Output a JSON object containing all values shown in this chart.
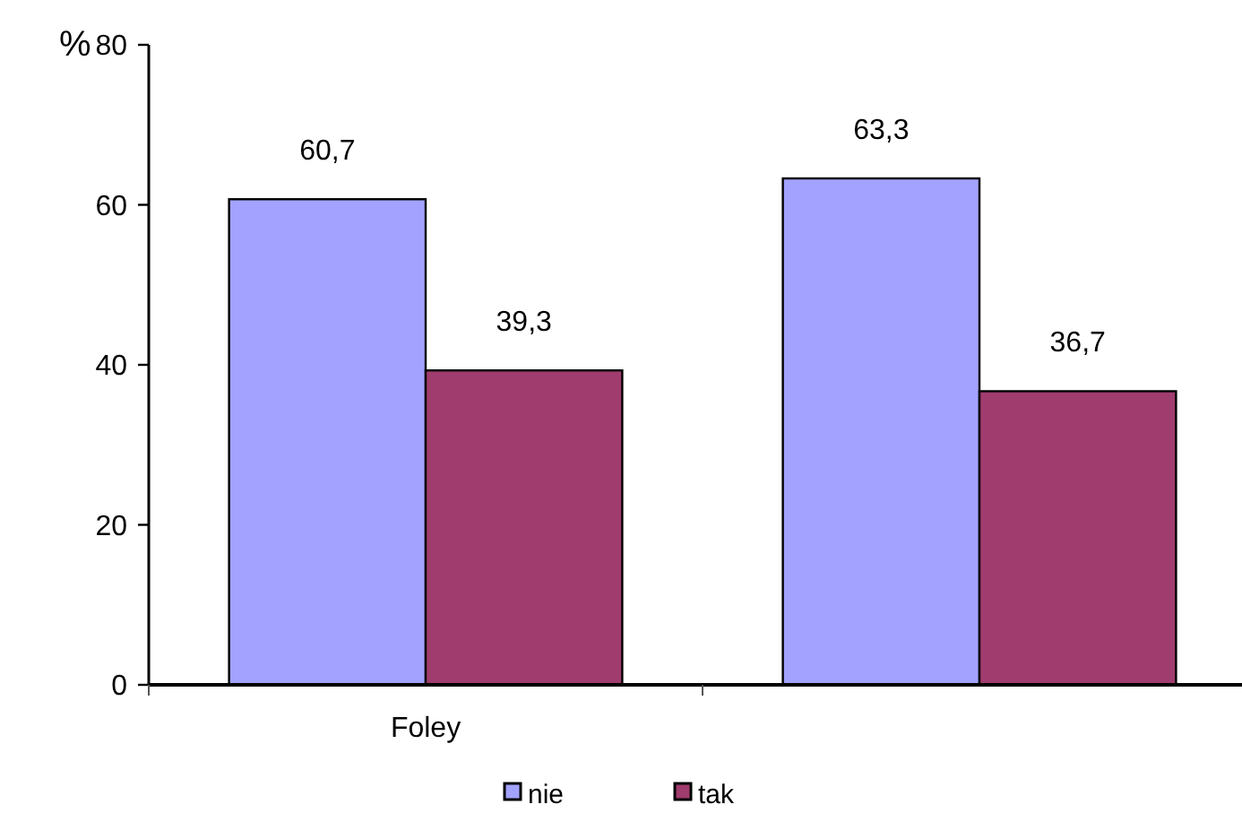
{
  "chart_data": {
    "type": "bar",
    "ylabel": "%",
    "categories": [
      "Foley",
      null
    ],
    "series": [
      {
        "name": "nie",
        "color": "#a3a2ff",
        "values": [
          60.7,
          63.3
        ],
        "value_labels": [
          "60,7",
          "63,3"
        ]
      },
      {
        "name": "tak",
        "color": "#a03c6e",
        "values": [
          39.3,
          36.7
        ],
        "value_labels": [
          "39,3",
          "36,7"
        ]
      }
    ],
    "ylim": [
      0,
      80
    ],
    "yticks": [
      0,
      20,
      40,
      60,
      80
    ],
    "grid": false,
    "legend": "bottom"
  }
}
